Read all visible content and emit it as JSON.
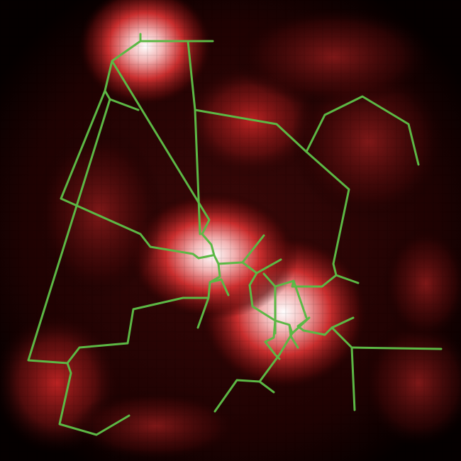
{
  "colors": {
    "background": "#000000",
    "heat_low": "#1a0000",
    "heat_mid": "#b01c1c",
    "heat_high": "#f2a0a0",
    "heat_peak": "#ffffff",
    "skeleton": "#5cb845"
  }
}
